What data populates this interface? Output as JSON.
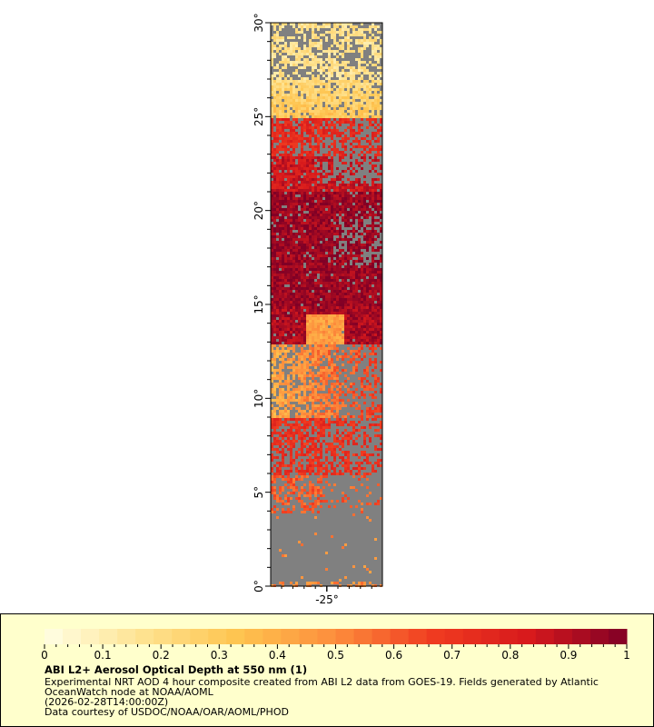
{
  "map": {
    "lat_ticks": [
      "0°",
      "5°",
      "10°",
      "15°",
      "20°",
      "25°",
      "30°"
    ],
    "lon_ticks": [
      "-25°"
    ],
    "lat_range": [
      0,
      30
    ],
    "no_data_color": "#808080"
  },
  "legend": {
    "colorbar": {
      "min": 0,
      "max": 1,
      "tick_labels": [
        "0",
        "0.1",
        "0.2",
        "0.3",
        "0.4",
        "0.5",
        "0.6",
        "0.7",
        "0.8",
        "0.9",
        "1"
      ],
      "colors": [
        "#ffffe5",
        "#fee391",
        "#fec44f",
        "#fd8d3c",
        "#f03b20",
        "#d7191c",
        "#800026"
      ]
    },
    "title": "ABI L2+ Aerosol Optical Depth at 550 nm (1)",
    "line1": "Experimental NRT AOD 4 hour composite created from ABI L2 data from GOES-19. Fields generated by Atlantic",
    "line2": "OceanWatch node at NOAA/AOML",
    "line3": "(2026-02-28T14:00:00Z)",
    "line4": "Data courtesy of USDOC/NOAA/OAR/AOML/PHOD"
  }
}
